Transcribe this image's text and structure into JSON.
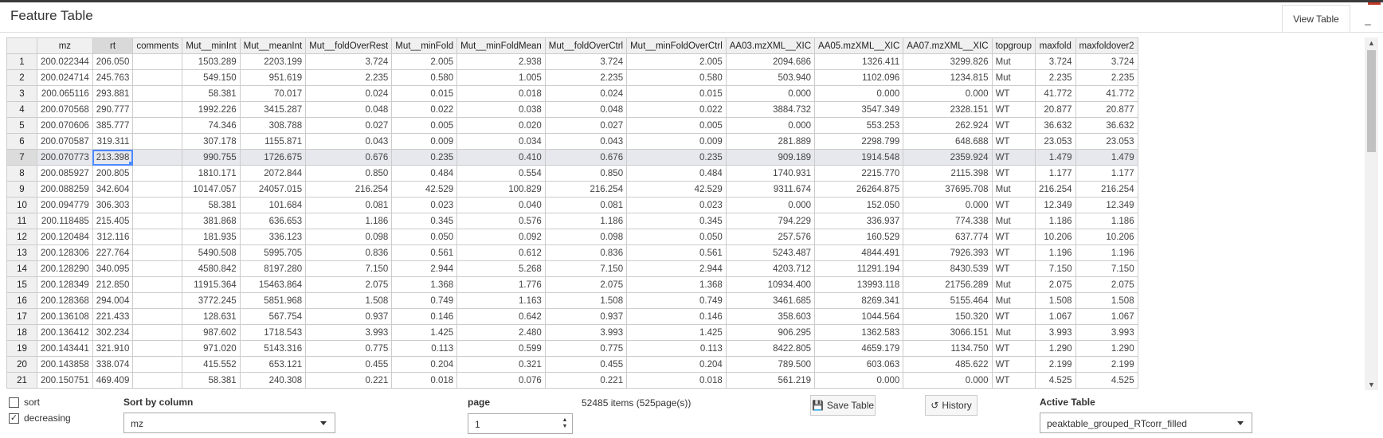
{
  "header": {
    "title": "Feature Table",
    "tab_label": "View Table",
    "minimize_label": "_"
  },
  "table": {
    "columns": [
      "",
      "mz",
      "rt",
      "comments",
      "Mut__minInt",
      "Mut__meanInt",
      "Mut__foldOverRest",
      "Mut__minFold",
      "Mut__minFoldMean",
      "Mut__foldOverCtrl",
      "Mut__minFoldOverCtrl",
      "AA03.mzXML__XIC",
      "AA05.mzXML__XIC",
      "AA07.mzXML__XIC",
      "topgroup",
      "maxfold",
      "maxfoldover2"
    ],
    "rows": [
      [
        "1",
        "200.022344",
        "206.050",
        "",
        "1503.289",
        "2203.199",
        "3.724",
        "2.005",
        "2.938",
        "3.724",
        "2.005",
        "2094.686",
        "1326.411",
        "3299.826",
        "Mut",
        "3.724",
        "3.724"
      ],
      [
        "2",
        "200.024714",
        "245.763",
        "",
        "549.150",
        "951.619",
        "2.235",
        "0.580",
        "1.005",
        "2.235",
        "0.580",
        "503.940",
        "1102.096",
        "1234.815",
        "Mut",
        "2.235",
        "2.235"
      ],
      [
        "3",
        "200.065116",
        "293.881",
        "",
        "58.381",
        "70.017",
        "0.024",
        "0.015",
        "0.018",
        "0.024",
        "0.015",
        "0.000",
        "0.000",
        "0.000",
        "WT",
        "41.772",
        "41.772"
      ],
      [
        "4",
        "200.070568",
        "290.777",
        "",
        "1992.226",
        "3415.287",
        "0.048",
        "0.022",
        "0.038",
        "0.048",
        "0.022",
        "3884.732",
        "3547.349",
        "2328.151",
        "WT",
        "20.877",
        "20.877"
      ],
      [
        "5",
        "200.070606",
        "385.777",
        "",
        "74.346",
        "308.788",
        "0.027",
        "0.005",
        "0.020",
        "0.027",
        "0.005",
        "0.000",
        "553.253",
        "262.924",
        "WT",
        "36.632",
        "36.632"
      ],
      [
        "6",
        "200.070587",
        "319.311",
        "",
        "307.178",
        "1155.871",
        "0.043",
        "0.009",
        "0.034",
        "0.043",
        "0.009",
        "281.889",
        "2298.799",
        "648.688",
        "WT",
        "23.053",
        "23.053"
      ],
      [
        "7",
        "200.070773",
        "213.398",
        "",
        "990.755",
        "1726.675",
        "0.676",
        "0.235",
        "0.410",
        "0.676",
        "0.235",
        "909.189",
        "1914.548",
        "2359.924",
        "WT",
        "1.479",
        "1.479"
      ],
      [
        "8",
        "200.085927",
        "200.805",
        "",
        "1810.171",
        "2072.844",
        "0.850",
        "0.484",
        "0.554",
        "0.850",
        "0.484",
        "1740.931",
        "2215.770",
        "2115.398",
        "WT",
        "1.177",
        "1.177"
      ],
      [
        "9",
        "200.088259",
        "342.604",
        "",
        "10147.057",
        "24057.015",
        "216.254",
        "42.529",
        "100.829",
        "216.254",
        "42.529",
        "9311.674",
        "26264.875",
        "37695.708",
        "Mut",
        "216.254",
        "216.254"
      ],
      [
        "10",
        "200.094779",
        "306.303",
        "",
        "58.381",
        "101.684",
        "0.081",
        "0.023",
        "0.040",
        "0.081",
        "0.023",
        "0.000",
        "152.050",
        "0.000",
        "WT",
        "12.349",
        "12.349"
      ],
      [
        "11",
        "200.118485",
        "215.405",
        "",
        "381.868",
        "636.653",
        "1.186",
        "0.345",
        "0.576",
        "1.186",
        "0.345",
        "794.229",
        "336.937",
        "774.338",
        "Mut",
        "1.186",
        "1.186"
      ],
      [
        "12",
        "200.120484",
        "312.116",
        "",
        "181.935",
        "336.123",
        "0.098",
        "0.050",
        "0.092",
        "0.098",
        "0.050",
        "257.576",
        "160.529",
        "637.774",
        "WT",
        "10.206",
        "10.206"
      ],
      [
        "13",
        "200.128306",
        "227.764",
        "",
        "5490.508",
        "5995.705",
        "0.836",
        "0.561",
        "0.612",
        "0.836",
        "0.561",
        "5243.487",
        "4844.491",
        "7926.393",
        "WT",
        "1.196",
        "1.196"
      ],
      [
        "14",
        "200.128290",
        "340.095",
        "",
        "4580.842",
        "8197.280",
        "7.150",
        "2.944",
        "5.268",
        "7.150",
        "2.944",
        "4203.712",
        "11291.194",
        "8430.539",
        "WT",
        "7.150",
        "7.150"
      ],
      [
        "15",
        "200.128349",
        "212.850",
        "",
        "11915.364",
        "15463.864",
        "2.075",
        "1.368",
        "1.776",
        "2.075",
        "1.368",
        "10934.400",
        "13993.118",
        "21756.289",
        "Mut",
        "2.075",
        "2.075"
      ],
      [
        "16",
        "200.128368",
        "294.004",
        "",
        "3772.245",
        "5851.968",
        "1.508",
        "0.749",
        "1.163",
        "1.508",
        "0.749",
        "3461.685",
        "8269.341",
        "5155.464",
        "Mut",
        "1.508",
        "1.508"
      ],
      [
        "17",
        "200.136108",
        "221.433",
        "",
        "128.631",
        "567.754",
        "0.937",
        "0.146",
        "0.642",
        "0.937",
        "0.146",
        "358.603",
        "1044.564",
        "150.320",
        "WT",
        "1.067",
        "1.067"
      ],
      [
        "18",
        "200.136412",
        "302.234",
        "",
        "987.602",
        "1718.543",
        "3.993",
        "1.425",
        "2.480",
        "3.993",
        "1.425",
        "906.295",
        "1362.583",
        "3066.151",
        "Mut",
        "3.993",
        "3.993"
      ],
      [
        "19",
        "200.143441",
        "321.910",
        "",
        "971.020",
        "5143.316",
        "0.775",
        "0.113",
        "0.599",
        "0.775",
        "0.113",
        "8422.805",
        "4659.179",
        "1134.750",
        "WT",
        "1.290",
        "1.290"
      ],
      [
        "20",
        "200.143858",
        "338.074",
        "",
        "415.552",
        "653.121",
        "0.455",
        "0.204",
        "0.321",
        "0.455",
        "0.204",
        "789.500",
        "603.063",
        "485.622",
        "WT",
        "2.199",
        "2.199"
      ],
      [
        "21",
        "200.150751",
        "469.409",
        "",
        "58.381",
        "240.308",
        "0.221",
        "0.018",
        "0.076",
        "0.221",
        "0.018",
        "561.219",
        "0.000",
        "0.000",
        "WT",
        "4.525",
        "4.525"
      ]
    ]
  },
  "controls": {
    "sort_label": "sort",
    "sort_checked": "",
    "decreasing_label": "decreasing",
    "decreasing_checked": "✓",
    "sort_by_label": "Sort by column",
    "sort_by_value": "mz",
    "page_label": "page",
    "page_value": "1",
    "items_info": "52485 items (525page(s))",
    "save_button": "Save Table",
    "history_button": "History",
    "active_table_label": "Active Table",
    "active_table_value": "peaktable_grouped_RTcorr_filled"
  }
}
